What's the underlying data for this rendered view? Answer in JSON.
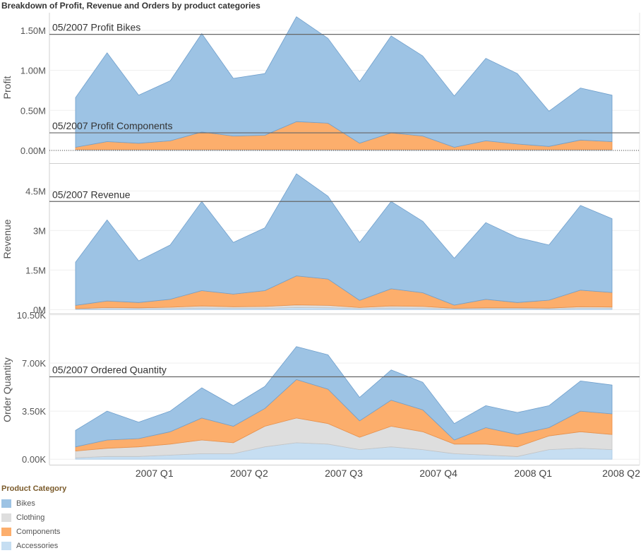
{
  "title": "Breakdown of Profit, Revenue and Orders by product categories",
  "legend": {
    "title": "Product Category",
    "items": [
      {
        "label": "Bikes",
        "color": "#9dc3e4"
      },
      {
        "label": "Clothing",
        "color": "#dedede"
      },
      {
        "label": "Components",
        "color": "#fcae6c"
      },
      {
        "label": "Accessories",
        "color": "#c6def2"
      }
    ]
  },
  "chart_data": [
    {
      "type": "area",
      "ylabel": "Profit",
      "ylim": [
        -0.15,
        1.72
      ],
      "ticks": [
        0,
        0.5,
        1.0,
        1.5
      ],
      "tick_labels": [
        "0.00M",
        "0.50M",
        "1.00M",
        "1.50M"
      ],
      "stack_order": [
        "Accessories",
        "Clothing",
        "Components",
        "Bikes"
      ],
      "series": [
        {
          "name": "Accessories",
          "values": [
            0.01,
            0.01,
            0.01,
            0.01,
            0.01,
            0.01,
            0.01,
            0.01,
            0.01,
            0.01,
            0.01,
            0.01,
            0.01,
            0.01,
            0.01,
            0.01,
            0.01,
            0.01
          ]
        },
        {
          "name": "Clothing",
          "values": [
            0.0,
            0.0,
            0.0,
            0.0,
            0.0,
            0.0,
            0.0,
            0.0,
            0.0,
            0.0,
            0.0,
            0.0,
            0.0,
            0.0,
            0.0,
            0.0,
            0.0,
            0.0
          ]
        },
        {
          "name": "Components",
          "values": [
            0.03,
            0.1,
            0.08,
            0.11,
            0.22,
            0.17,
            0.18,
            0.35,
            0.33,
            0.08,
            0.21,
            0.17,
            0.03,
            0.11,
            0.07,
            0.04,
            0.12,
            0.1
          ]
        },
        {
          "name": "Bikes",
          "values": [
            0.62,
            1.11,
            0.6,
            0.75,
            1.23,
            0.72,
            0.77,
            1.31,
            1.06,
            0.77,
            1.21,
            1.0,
            0.64,
            1.03,
            0.88,
            0.44,
            0.65,
            0.58
          ]
        }
      ],
      "reference_lines": [
        {
          "label": "05/2007 Profit Bikes",
          "value": 1.45
        },
        {
          "label": "05/2007 Profit Components",
          "value": 0.22
        }
      ]
    },
    {
      "type": "area",
      "ylabel": "Revenue",
      "ylim": [
        -0.15,
        5.5
      ],
      "ticks": [
        0,
        1.5,
        3,
        4.5
      ],
      "tick_labels": [
        "0M",
        "1.5M",
        "3M",
        "4.5M"
      ],
      "stack_order": [
        "Accessories",
        "Clothing",
        "Components",
        "Bikes"
      ],
      "series": [
        {
          "name": "Accessories",
          "values": [
            0.02,
            0.04,
            0.04,
            0.04,
            0.06,
            0.05,
            0.05,
            0.08,
            0.07,
            0.04,
            0.06,
            0.05,
            0.03,
            0.04,
            0.04,
            0.03,
            0.05,
            0.05
          ]
        },
        {
          "name": "Clothing",
          "values": [
            0.02,
            0.04,
            0.03,
            0.05,
            0.08,
            0.06,
            0.07,
            0.1,
            0.09,
            0.04,
            0.08,
            0.07,
            0.02,
            0.03,
            0.03,
            0.03,
            0.06,
            0.05
          ]
        },
        {
          "name": "Components",
          "values": [
            0.12,
            0.25,
            0.2,
            0.3,
            0.58,
            0.48,
            0.6,
            1.1,
            1.0,
            0.27,
            0.65,
            0.52,
            0.12,
            0.32,
            0.2,
            0.3,
            0.63,
            0.55
          ]
        },
        {
          "name": "Bikes",
          "values": [
            1.64,
            3.07,
            1.58,
            2.06,
            3.38,
            1.96,
            2.38,
            3.87,
            3.14,
            2.2,
            3.31,
            2.71,
            1.78,
            2.91,
            2.46,
            2.09,
            3.21,
            2.8
          ]
        }
      ],
      "reference_lines": [
        {
          "label": "05/2007 Revenue",
          "value": 4.1
        }
      ]
    },
    {
      "type": "area",
      "ylabel": "Order Quantity",
      "xlabel": "",
      "ylim": [
        -0.4,
        10.5
      ],
      "ticks": [
        0,
        3.5,
        7.0,
        10.5
      ],
      "tick_labels": [
        "0.00K",
        "3.50K",
        "7.00K",
        "10.50K"
      ],
      "stack_order": [
        "Accessories",
        "Clothing",
        "Components",
        "Bikes"
      ],
      "series": [
        {
          "name": "Accessories",
          "values": [
            0.1,
            0.2,
            0.2,
            0.3,
            0.4,
            0.4,
            0.9,
            1.2,
            1.1,
            0.7,
            0.9,
            0.7,
            0.4,
            0.3,
            0.2,
            0.7,
            0.8,
            0.7
          ]
        },
        {
          "name": "Clothing",
          "values": [
            0.5,
            0.6,
            0.7,
            0.8,
            1.0,
            0.8,
            1.5,
            1.8,
            1.5,
            0.9,
            1.5,
            1.3,
            0.7,
            0.8,
            0.7,
            1.0,
            1.2,
            1.1
          ]
        },
        {
          "name": "Components",
          "values": [
            0.3,
            0.6,
            0.6,
            0.9,
            1.6,
            1.2,
            1.3,
            2.8,
            2.5,
            1.2,
            1.9,
            1.6,
            0.3,
            1.2,
            0.9,
            0.6,
            1.5,
            1.5
          ]
        },
        {
          "name": "Bikes",
          "values": [
            1.2,
            2.1,
            1.2,
            1.5,
            2.2,
            1.5,
            1.6,
            2.4,
            2.5,
            1.7,
            2.2,
            2.0,
            1.2,
            1.6,
            1.6,
            1.6,
            2.2,
            2.1
          ]
        }
      ],
      "reference_lines": [
        {
          "label": "05/2007 Ordered Quantity",
          "value": 6.0
        }
      ]
    }
  ],
  "x_axis": {
    "labels": [
      "2007 Q1",
      "2007 Q2",
      "2007 Q3",
      "2007 Q4",
      "2008 Q1",
      "2008 Q2"
    ]
  }
}
